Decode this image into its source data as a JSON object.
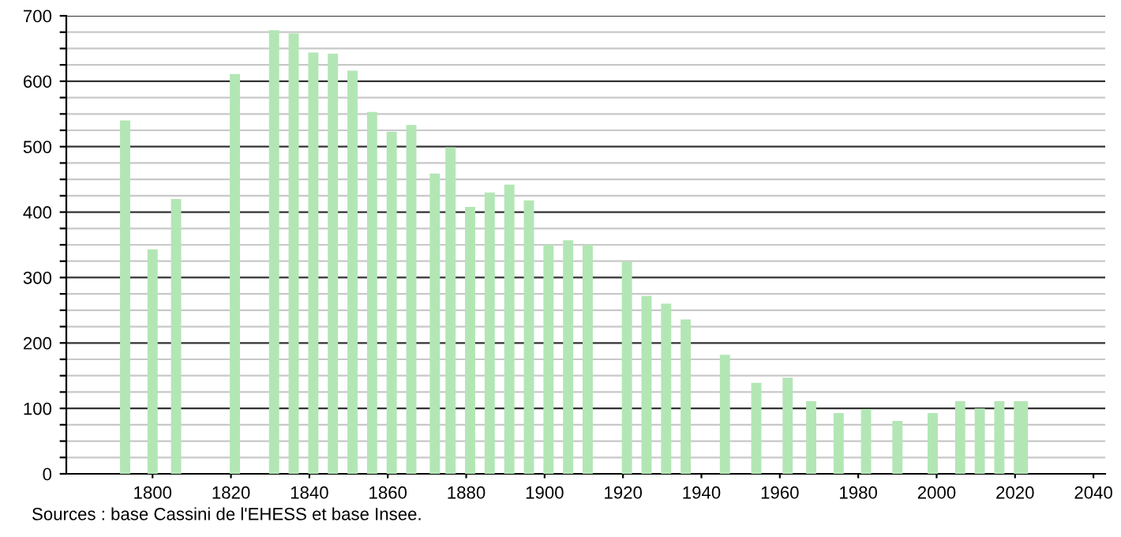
{
  "chart_data": {
    "type": "bar",
    "x": [
      1793,
      1800,
      1806,
      1821,
      1831,
      1836,
      1841,
      1846,
      1851,
      1856,
      1861,
      1866,
      1872,
      1876,
      1881,
      1886,
      1891,
      1896,
      1901,
      1906,
      1911,
      1921,
      1926,
      1931,
      1936,
      1946,
      1954,
      1962,
      1968,
      1975,
      1982,
      1990,
      1999,
      2006,
      2011,
      2016,
      2021,
      2022
    ],
    "series": [
      {
        "color": "#b3e6b5",
        "values": [
          540,
          343,
          420,
          611,
          678,
          673,
          644,
          642,
          616,
          553,
          523,
          533,
          459,
          499,
          408,
          430,
          442,
          418,
          350,
          357,
          350,
          324,
          272,
          260,
          236,
          182,
          139,
          147,
          111,
          93,
          99,
          81,
          93,
          111,
          100,
          111,
          111,
          111
        ]
      }
    ],
    "xlim": [
      1778,
      2043
    ],
    "xticks": [
      1800,
      1820,
      1840,
      1860,
      1880,
      1900,
      1920,
      1940,
      1960,
      1980,
      2000,
      2020,
      2040
    ],
    "ylim": [
      0,
      700
    ],
    "yticks": [
      0,
      {
        "value": 25,
        "label": null
      },
      {
        "value": 50,
        "label": null
      },
      {
        "value": 75,
        "label": null
      },
      100,
      {
        "value": 125,
        "label": null
      },
      {
        "value": 150,
        "label": null
      },
      {
        "value": 175,
        "label": null
      },
      200,
      {
        "value": 225,
        "label": null
      },
      {
        "value": 250,
        "label": null
      },
      {
        "value": 275,
        "label": null
      },
      300,
      {
        "value": 325,
        "label": null
      },
      {
        "value": 350,
        "label": null
      },
      {
        "value": 375,
        "label": null
      },
      400,
      {
        "value": 425,
        "label": null
      },
      {
        "value": 450,
        "label": null
      },
      {
        "value": 475,
        "label": null
      },
      500,
      {
        "value": 525,
        "label": null
      },
      {
        "value": 550,
        "label": null
      },
      {
        "value": 575,
        "label": null
      },
      600,
      {
        "value": 625,
        "label": null
      },
      {
        "value": 650,
        "label": null
      },
      {
        "value": 675,
        "label": null
      },
      700
    ],
    "grid": "y",
    "annotations": [
      "Sources : base Cassini de l'EHESS et base Insee."
    ]
  }
}
